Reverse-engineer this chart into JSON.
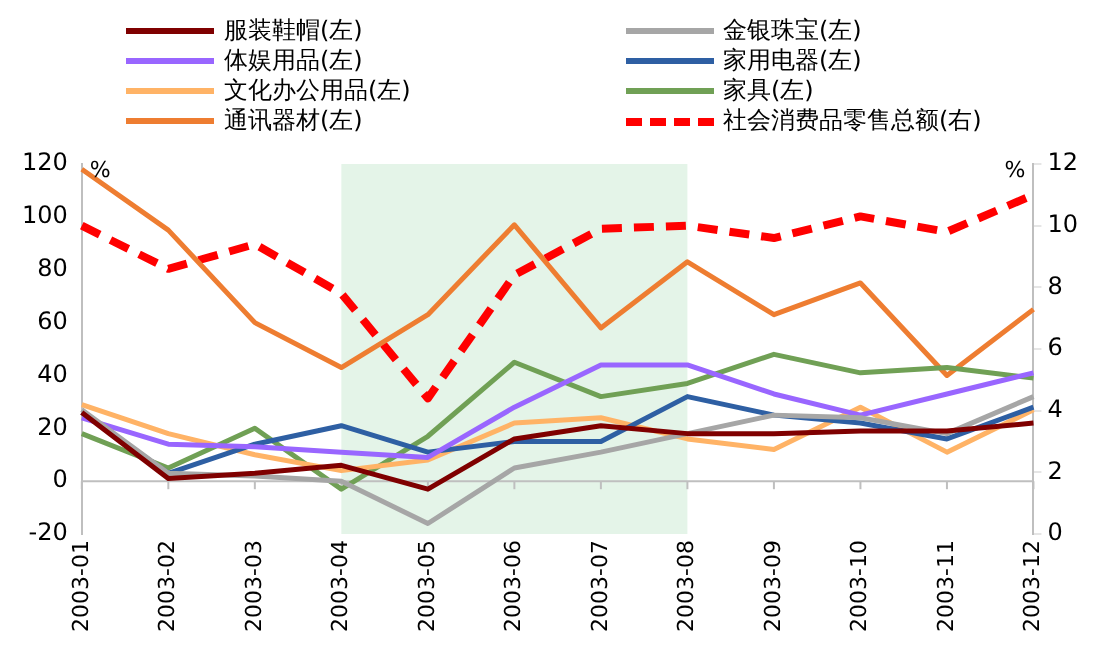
{
  "chart_data": {
    "type": "line",
    "ylabel": "%",
    "y2label": "%",
    "categories": [
      "2003-01",
      "2003-02",
      "2003-03",
      "2003-04",
      "2003-05",
      "2003-06",
      "2003-07",
      "2003-08",
      "2003-09",
      "2003-10",
      "2003-11",
      "2003-12"
    ],
    "series": [
      {
        "name": "服装鞋帽(左)",
        "color": "#7f0000",
        "values": [
          26,
          1,
          3,
          6,
          -3,
          16,
          21,
          18,
          18,
          19,
          19,
          22
        ]
      },
      {
        "name": "金银珠宝(左)",
        "color": "#a6a6a6",
        "values": [
          27,
          3,
          2,
          0,
          -16,
          5,
          11,
          18,
          25,
          24,
          18,
          32
        ]
      },
      {
        "name": "体娱用品(左)",
        "color": "#9966ff",
        "values": [
          24,
          14,
          13,
          11,
          9,
          28,
          44,
          44,
          33,
          25,
          33,
          41
        ]
      },
      {
        "name": "家用电器(左)",
        "color": "#2e5fa3",
        "values": [
          26,
          3,
          14,
          21,
          11,
          15,
          15,
          32,
          25,
          22,
          16,
          28
        ]
      },
      {
        "name": "文化办公用品(左)",
        "color": "#ffb366",
        "values": [
          29,
          18,
          10,
          4,
          8,
          22,
          24,
          16,
          12,
          28,
          11,
          27
        ]
      },
      {
        "name": "家具(左)",
        "color": "#70a055",
        "values": [
          18,
          5,
          20,
          -3,
          17,
          45,
          32,
          37,
          48,
          41,
          43,
          39
        ]
      },
      {
        "name": "通讯器材(左)",
        "color": "#ee7d31",
        "values": [
          118,
          95,
          60,
          43,
          63,
          97,
          58,
          83,
          63,
          75,
          40,
          65
        ]
      },
      {
        "name": "社会消费品零售总额(右)",
        "color": "#ff0000",
        "axis": "y2",
        "line_style": "dashed",
        "values": [
          10.0,
          8.6,
          9.4,
          7.8,
          4.4,
          8.4,
          9.9,
          10.0,
          9.6,
          10.3,
          9.8,
          11.0
        ]
      }
    ],
    "ylim": [
      -20,
      120
    ],
    "yticks": [
      -20,
      0,
      20,
      40,
      60,
      80,
      100,
      120
    ],
    "y2lim": [
      0,
      12
    ],
    "y2ticks": [
      0,
      2,
      4,
      6,
      8,
      10,
      12
    ],
    "bands": [
      {
        "axis": "x",
        "from": "2003-04",
        "to": "2003-08",
        "color": "#e4f4e8"
      }
    ],
    "ref_lines": [
      {
        "axis": "y",
        "value": 0,
        "color": "#bfbfbf"
      }
    ],
    "grid": false,
    "legend": "top",
    "marker": "none"
  }
}
